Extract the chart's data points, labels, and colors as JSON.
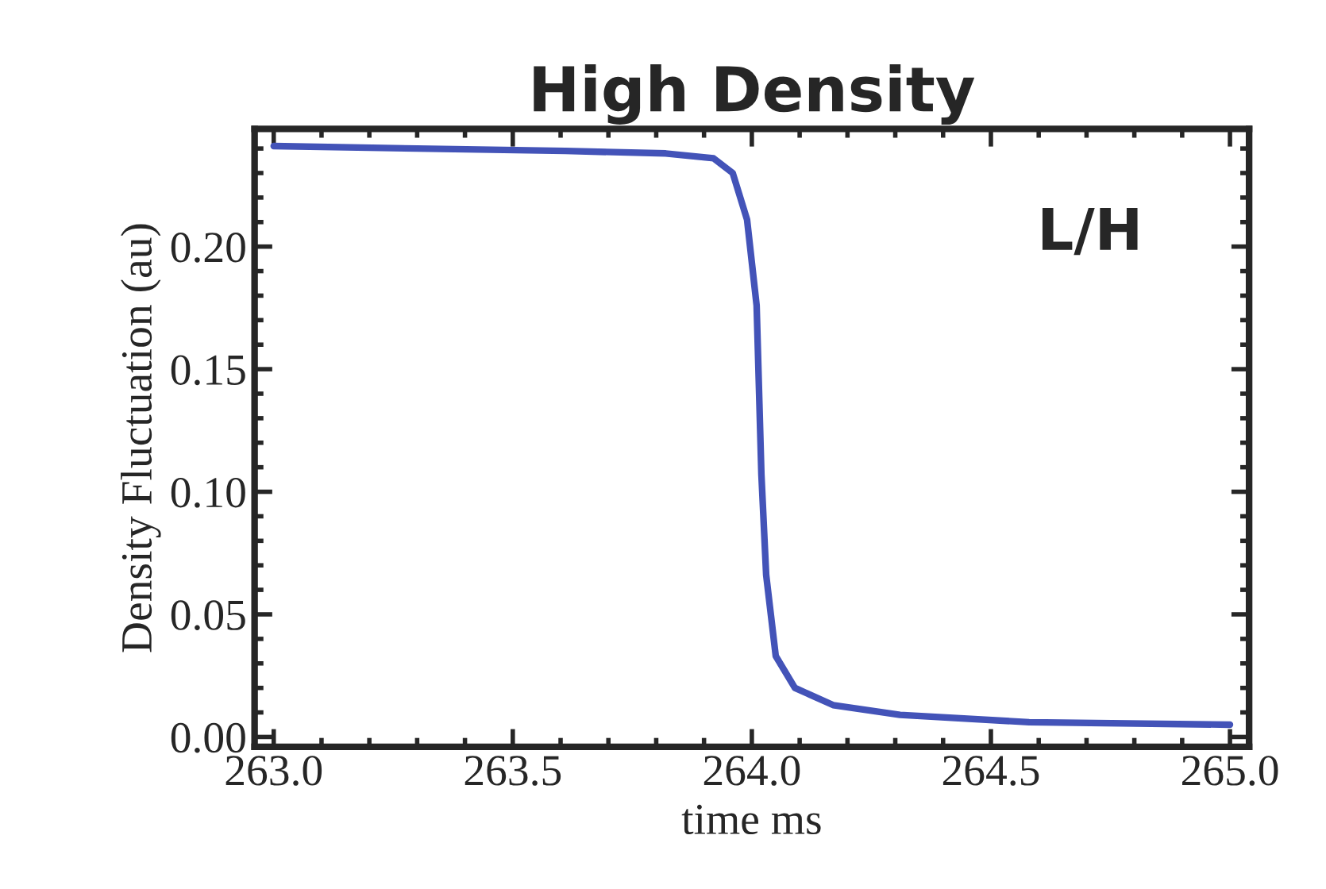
{
  "chart_data": {
    "type": "line",
    "title": "High Density",
    "xlabel": "time ms",
    "ylabel": "Density Fluctuation (au)",
    "annotations": [
      "L/H"
    ],
    "x": [
      263.0,
      263.3,
      263.61,
      263.82,
      263.92,
      263.96,
      263.99,
      264.01,
      264.02,
      264.03,
      264.05,
      264.09,
      264.17,
      264.31,
      264.58,
      265.0
    ],
    "series": [
      {
        "color": "#4353b8",
        "values": [
          0.241,
          0.24,
          0.239,
          0.238,
          0.236,
          0.23,
          0.211,
          0.176,
          0.107,
          0.066,
          0.033,
          0.02,
          0.013,
          0.009,
          0.006,
          0.005
        ]
      }
    ],
    "xlim": [
      262.96,
      265.04
    ],
    "ylim": [
      -0.004,
      0.248
    ],
    "xticks": [
      {
        "value": 263.0,
        "label": "263.0"
      },
      {
        "value": 263.5,
        "label": "263.5"
      },
      {
        "value": 264.0,
        "label": "264.0"
      },
      {
        "value": 264.5,
        "label": "264.5"
      },
      {
        "value": 265.0,
        "label": "265.0"
      }
    ],
    "yticks": [
      {
        "value": 0.0,
        "label": "0.00"
      },
      {
        "value": 0.05,
        "label": "0.05"
      },
      {
        "value": 0.1,
        "label": "0.10"
      },
      {
        "value": 0.15,
        "label": "0.15"
      },
      {
        "value": 0.2,
        "label": "0.20"
      }
    ],
    "grid": false,
    "legend": false,
    "marker": "none",
    "line_style": "solid"
  }
}
